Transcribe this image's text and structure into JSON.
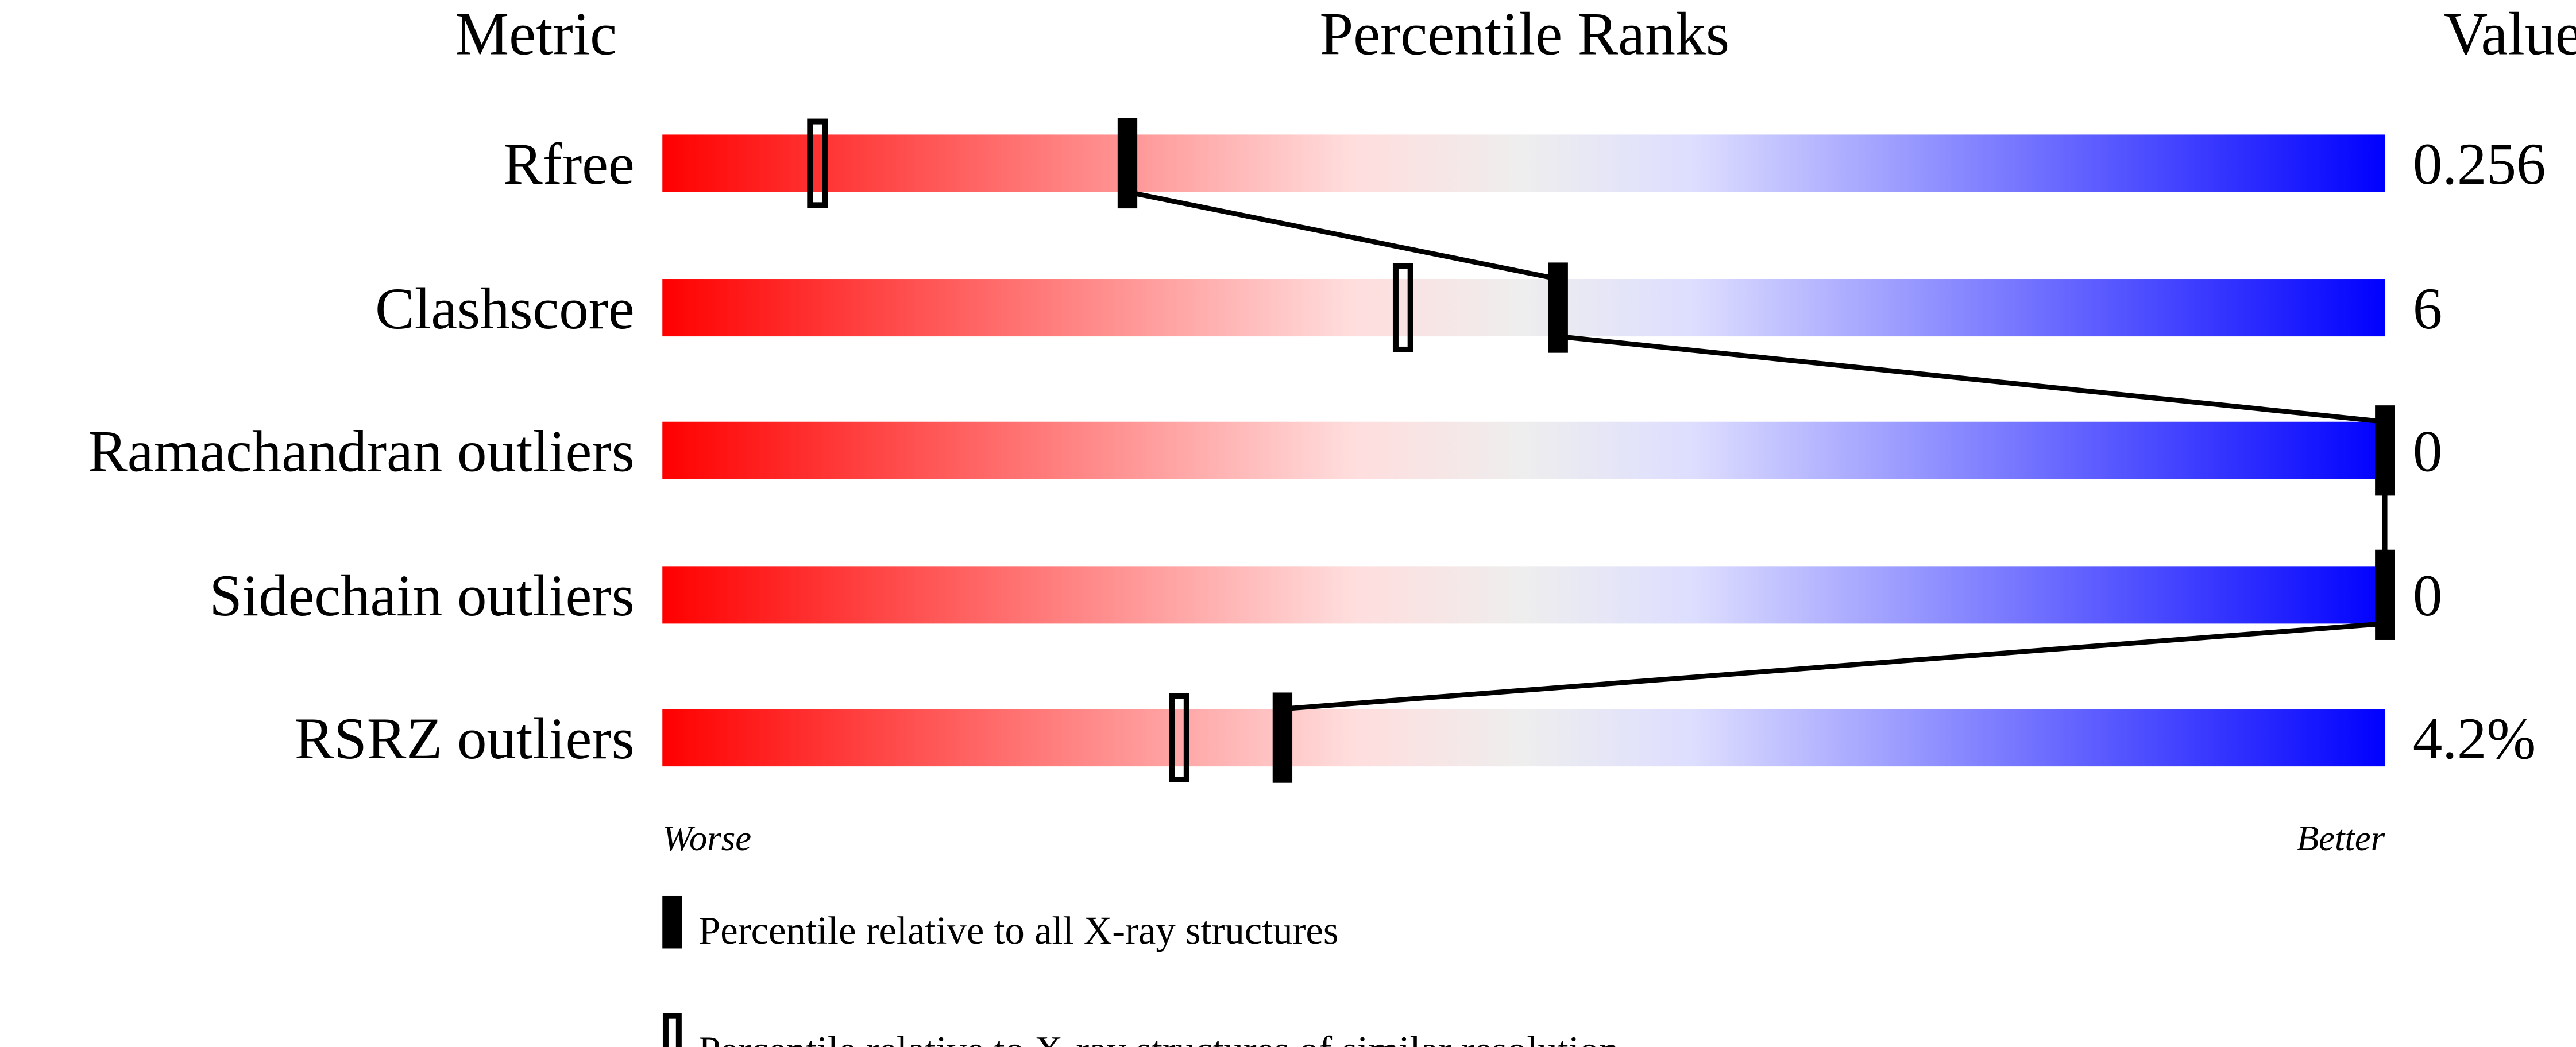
{
  "chart_data": {
    "type": "percentile-bar",
    "headers": {
      "metric": "Metric",
      "percentile": "Percentile Ranks",
      "value": "Value"
    },
    "xlim": [
      0,
      100
    ],
    "gradient_colors": [
      "#ff0000",
      "#ffdddd",
      "#eeeeee",
      "#ddddff",
      "#0000ff"
    ],
    "rows": [
      {
        "metric": "Rfree",
        "value": "0.256",
        "percentile_all": 27,
        "percentile_similar": 9
      },
      {
        "metric": "Clashscore",
        "value": "6",
        "percentile_all": 52,
        "percentile_similar": 43
      },
      {
        "metric": "Ramachandran outliers",
        "value": "0",
        "percentile_all": 100,
        "percentile_similar": null
      },
      {
        "metric": "Sidechain outliers",
        "value": "0",
        "percentile_all": 100,
        "percentile_similar": null
      },
      {
        "metric": "RSRZ outliers",
        "value": "4.2%",
        "percentile_all": 36,
        "percentile_similar": 30
      }
    ],
    "axis_labels": {
      "left": "Worse",
      "right": "Better"
    },
    "legend": [
      {
        "marker": "filled",
        "label": "Percentile relative to all X-ray structures"
      },
      {
        "marker": "open",
        "label": "Percentile relative to X-ray structures of similar resolution"
      }
    ]
  }
}
